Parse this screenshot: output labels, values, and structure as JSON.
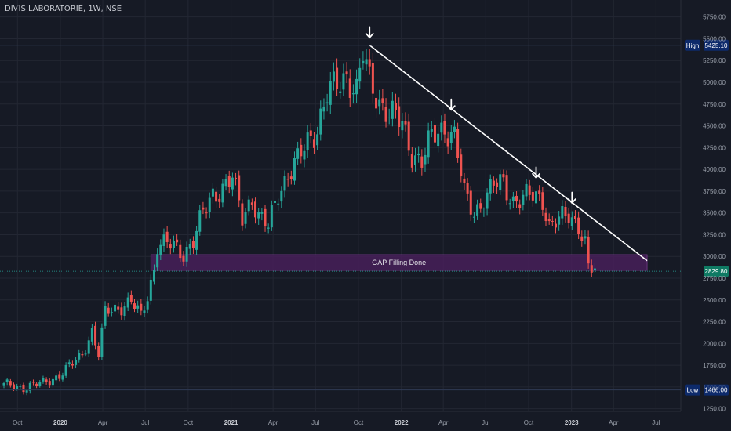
{
  "chart_data": {
    "type": "candlestick",
    "title": "DIVIS LABORATORIE, 1W, NSE",
    "x_ticks": [
      "Oct",
      "2020",
      "Apr",
      "Jul",
      "Oct",
      "2021",
      "Apr",
      "Jul",
      "Oct",
      "2022",
      "Apr",
      "Jul",
      "Oct",
      "2023",
      "Apr",
      "Jul"
    ],
    "y_ticks": [
      1250,
      1500,
      1750,
      2000,
      2250,
      2500,
      2750,
      3000,
      3250,
      3500,
      3750,
      4000,
      4250,
      4500,
      4750,
      5000,
      5250,
      5500,
      5750
    ],
    "y_tick_labels": [
      "1250.00",
      "1500.00",
      "1750.00",
      "2000.00",
      "2250.00",
      "2500.00",
      "2750.00",
      "3000.00",
      "3250.00",
      "3500.00",
      "3750.00",
      "4000.00",
      "4250.00",
      "4500.00",
      "4750.00",
      "5000.00",
      "5250.00",
      "5500.00",
      "5750.00"
    ],
    "ylim": [
      1130,
      5900
    ],
    "price_path": [
      [
        "2019-09-02",
        1520
      ],
      [
        "2019-10-14",
        1500
      ],
      [
        "2019-11-25",
        1540
      ],
      [
        "2019-12-30",
        1640
      ],
      [
        "2020-01-27",
        1760
      ],
      [
        "2020-02-17",
        1880
      ],
      [
        "2020-03-09",
        2150
      ],
      [
        "2020-03-23",
        1870
      ],
      [
        "2020-04-06",
        2350
      ],
      [
        "2020-05-04",
        2420
      ],
      [
        "2020-06-01",
        2480
      ],
      [
        "2020-06-22",
        2300
      ],
      [
        "2020-07-06",
        2550
      ],
      [
        "2020-07-20",
        2870
      ],
      [
        "2020-07-27",
        3150
      ],
      [
        "2020-08-24",
        3120
      ],
      [
        "2020-09-21",
        3050
      ],
      [
        "2020-10-12",
        3180
      ],
      [
        "2020-11-02",
        3480
      ],
      [
        "2020-11-23",
        3720
      ],
      [
        "2020-12-14",
        3800
      ],
      [
        "2021-01-04",
        3880
      ],
      [
        "2021-01-25",
        3450
      ],
      [
        "2021-02-15",
        3700
      ],
      [
        "2021-03-01",
        3450
      ],
      [
        "2021-03-22",
        3320
      ],
      [
        "2021-04-12",
        3750
      ],
      [
        "2021-05-03",
        3950
      ],
      [
        "2021-05-24",
        4080
      ],
      [
        "2021-06-14",
        4320
      ],
      [
        "2021-07-05",
        4500
      ],
      [
        "2021-07-26",
        4850
      ],
      [
        "2021-08-16",
        4950
      ],
      [
        "2021-09-06",
        5100
      ],
      [
        "2021-09-27",
        4900
      ],
      [
        "2021-10-11",
        5300
      ],
      [
        "2021-10-25",
        5000
      ],
      [
        "2021-11-15",
        4800
      ],
      [
        "2021-12-06",
        4650
      ],
      [
        "2022-01-03",
        4500
      ],
      [
        "2022-01-24",
        4200
      ],
      [
        "2022-02-14",
        4100
      ],
      [
        "2022-03-07",
        4350
      ],
      [
        "2022-04-04",
        4500
      ],
      [
        "2022-04-25",
        4380
      ],
      [
        "2022-05-16",
        3700
      ],
      [
        "2022-06-06",
        3520
      ],
      [
        "2022-06-27",
        3650
      ],
      [
        "2022-07-18",
        3800
      ],
      [
        "2022-08-08",
        3850
      ],
      [
        "2022-08-29",
        3650
      ],
      [
        "2022-09-19",
        3650
      ],
      [
        "2022-10-10",
        3700
      ],
      [
        "2022-10-31",
        3680
      ],
      [
        "2022-11-14",
        3350
      ],
      [
        "2022-12-05",
        3400
      ],
      [
        "2022-12-26",
        3480
      ],
      [
        "2023-01-16",
        3380
      ],
      [
        "2023-01-30",
        3150
      ],
      [
        "2023-02-06",
        2850
      ],
      [
        "2023-02-20",
        2830
      ]
    ],
    "high": {
      "label": "High",
      "value": "5425.10",
      "price": 5425.1
    },
    "low": {
      "label": "Low",
      "value": "1466.00",
      "price": 1466
    },
    "last": {
      "value": "2829.80",
      "price": 2829.8
    },
    "zone": {
      "label": "GAP Filling Done",
      "from_date": "2020-07-13",
      "to_date": "2023-06-12",
      "low": 2840,
      "high": 3020
    },
    "trendline": {
      "from_date": "2021-10-25",
      "from_price": 5425,
      "to_date": "2023-06-12",
      "to_price": 2950
    },
    "arrows": [
      {
        "date": "2021-10-25",
        "price": 5500
      },
      {
        "date": "2022-04-18",
        "price": 4670
      },
      {
        "date": "2022-10-17",
        "price": 3890
      },
      {
        "date": "2023-01-02",
        "price": 3600
      }
    ],
    "colors": {
      "background": "#161a25",
      "grid": "#232733",
      "up": "#26a69a",
      "down": "#ef5350",
      "trendline": "#ffffff",
      "zone_fill": "#4a1f5c",
      "zone_border": "#7b3a8f",
      "high_low_tag": "#0d2a6b",
      "last_tag": "#0f7a63",
      "text": "#9aa0ab"
    }
  }
}
